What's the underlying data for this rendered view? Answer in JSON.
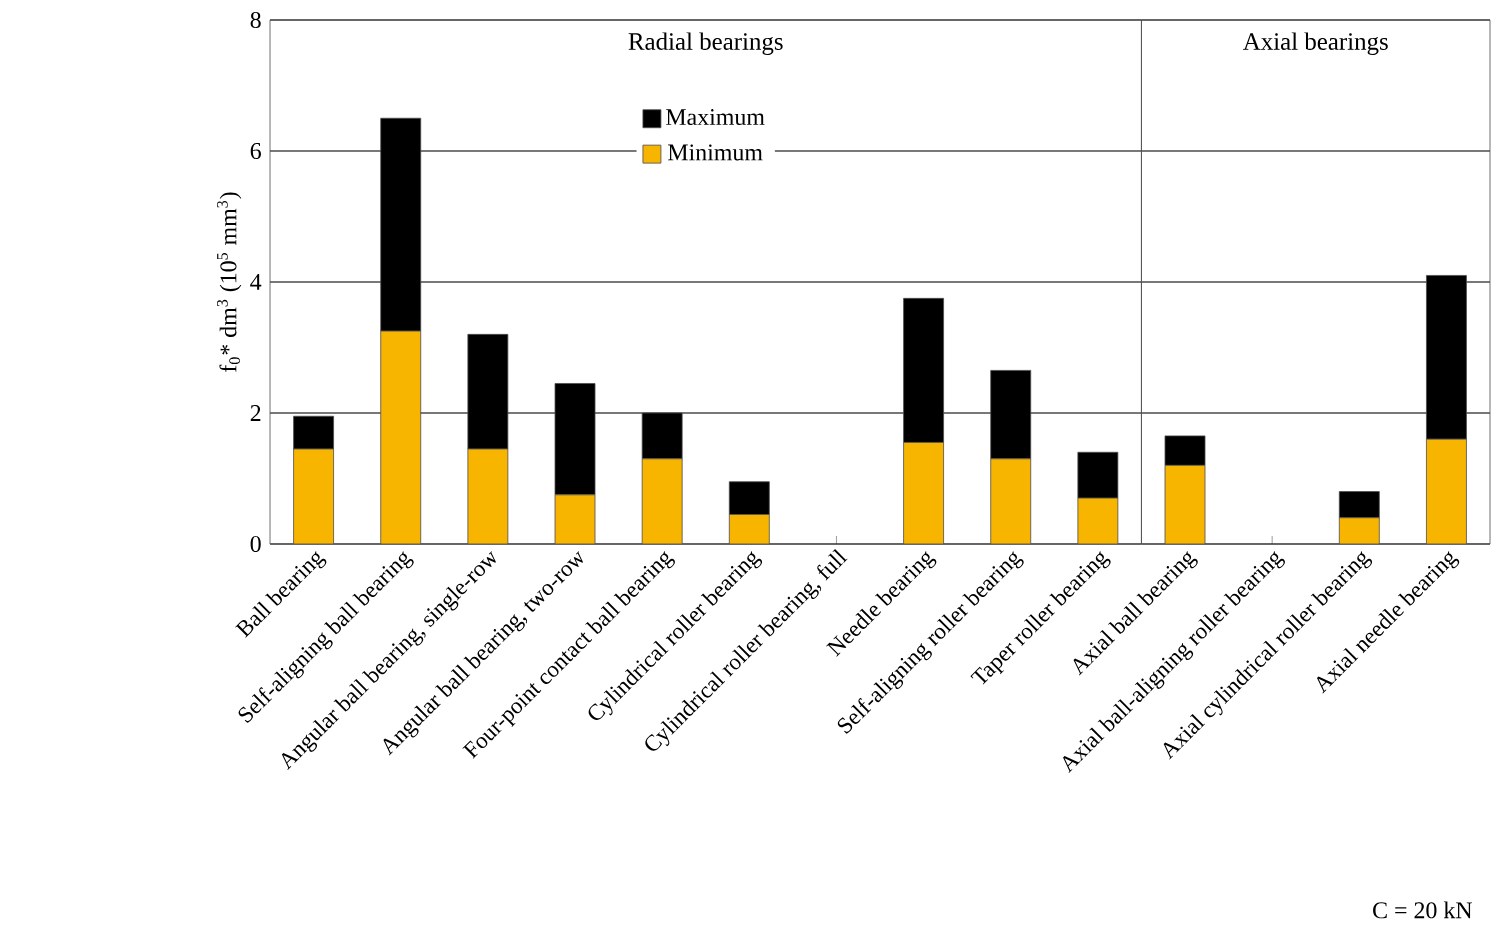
{
  "chart_data": [
    {
      "type": "bar",
      "stacked": true,
      "title": "Radial bearings",
      "ylabel": "f$_{0}$* dm$^{3}$ (10$^{5}$ mm$^{3}$)",
      "categories": [
        "Ball bearing",
        "Self-aligning ball bearing",
        "Angular ball bearing, single-row",
        "Angular ball bearing, two-row",
        "Four-point contact ball bearing",
        "Cylindrical roller bearing",
        "Cylindrical roller bearing, full",
        "Needle bearing",
        "Self-aligning roller bearing",
        "Taper roller bearing"
      ],
      "series": [
        {
          "name": "Minimum",
          "color": "#f7b500",
          "values": [
            1.45,
            3.25,
            1.45,
            0.75,
            1.3,
            0.45,
            null,
            1.55,
            1.3,
            0.7
          ]
        },
        {
          "name": "Maximum",
          "color": "#000000",
          "values": [
            0.5,
            3.25,
            1.75,
            1.7,
            0.7,
            0.5,
            null,
            2.2,
            1.35,
            0.7
          ]
        }
      ],
      "ylim": [
        0,
        8
      ],
      "yticks": [
        0,
        2,
        4,
        6,
        8
      ],
      "grid": "y",
      "legend": "top"
    },
    {
      "type": "bar",
      "stacked": true,
      "title": "Axial bearings",
      "categories": [
        "Axial ball bearing",
        "Axial ball-aligning roller bearing",
        "Axial cylindrical roller bearing",
        "Axial needle bearing"
      ],
      "series": [
        {
          "color": "#f7b500",
          "values": [
            1.2,
            null,
            0.4,
            1.6
          ]
        },
        {
          "color": "#000000",
          "values": [
            0.45,
            null,
            0.4,
            2.5
          ]
        }
      ],
      "ylim": [
        0,
        8
      ],
      "yticks": [
        0,
        2,
        4,
        6,
        8
      ],
      "grid": "y",
      "tick_labels": "x",
      "annotations": [
        "C = 20 kN"
      ]
    }
  ]
}
